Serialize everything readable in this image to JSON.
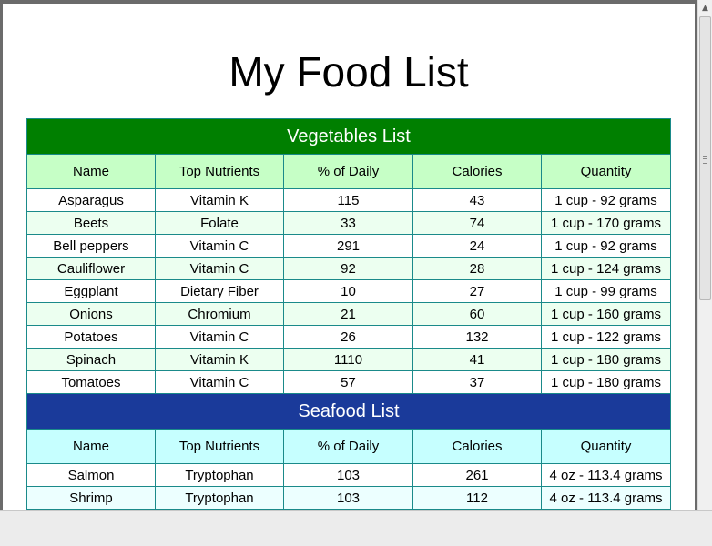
{
  "page": {
    "title": "My Food List"
  },
  "columns": [
    "Name",
    "Top Nutrients",
    "% of Daily",
    "Calories",
    "Quantity"
  ],
  "vegetables": {
    "section_title": "Vegetables List",
    "rows": [
      [
        "Asparagus",
        "Vitamin K",
        "115",
        "43",
        "1 cup - 92 grams"
      ],
      [
        "Beets",
        "Folate",
        "33",
        "74",
        "1 cup - 170 grams"
      ],
      [
        "Bell peppers",
        "Vitamin C",
        "291",
        "24",
        "1 cup - 92 grams"
      ],
      [
        "Cauliflower",
        "Vitamin C",
        "92",
        "28",
        "1 cup - 124 grams"
      ],
      [
        "Eggplant",
        "Dietary Fiber",
        "10",
        "27",
        "1 cup - 99 grams"
      ],
      [
        "Onions",
        "Chromium",
        "21",
        "60",
        "1 cup - 160 grams"
      ],
      [
        "Potatoes",
        "Vitamin C",
        "26",
        "132",
        "1 cup - 122 grams"
      ],
      [
        "Spinach",
        "Vitamin K",
        "1110",
        "41",
        "1 cup - 180 grams"
      ],
      [
        "Tomatoes",
        "Vitamin C",
        "57",
        "37",
        "1 cup - 180 grams"
      ]
    ]
  },
  "seafood": {
    "section_title": "Seafood List",
    "rows": [
      [
        "Salmon",
        "Tryptophan",
        "103",
        "261",
        "4 oz - 113.4 grams"
      ],
      [
        "Shrimp",
        "Tryptophan",
        "103",
        "112",
        "4 oz - 113.4 grams"
      ]
    ]
  },
  "colors": {
    "veg_section_bg": "#007f00",
    "veg_header_bg": "#c6ffc6",
    "sea_section_bg": "#1a3a9a",
    "sea_header_bg": "#c6ffff",
    "border": "#1a8a8a"
  },
  "icons": {
    "scroll_up": "scroll-up-arrow-icon"
  }
}
